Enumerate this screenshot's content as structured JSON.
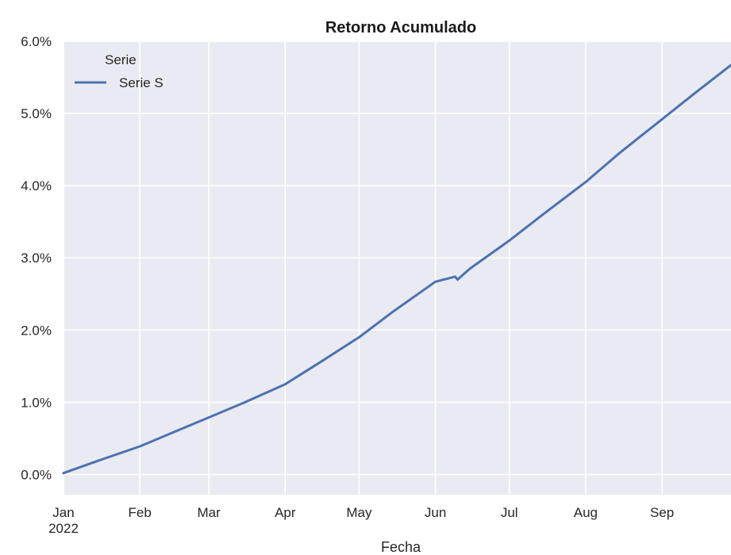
{
  "chart_data": {
    "type": "line",
    "title": "Retorno Acumulado",
    "xlabel": "Fecha",
    "ylabel": "",
    "ylim": [
      -0.28,
      6.0
    ],
    "y_ticks": [
      0.0,
      1.0,
      2.0,
      3.0,
      4.0,
      5.0,
      6.0
    ],
    "y_tick_labels": [
      "0.0%",
      "1.0%",
      "2.0%",
      "3.0%",
      "4.0%",
      "5.0%",
      "6.0%"
    ],
    "x_range": [
      "2022-01-01",
      "2022-09-29"
    ],
    "x_ticks": [
      "2022-01-01",
      "2022-02-01",
      "2022-03-01",
      "2022-04-01",
      "2022-05-01",
      "2022-06-01",
      "2022-07-01",
      "2022-08-01",
      "2022-09-01"
    ],
    "x_tick_labels": [
      "Jan",
      "Feb",
      "Mar",
      "Apr",
      "May",
      "Jun",
      "Jul",
      "Aug",
      "Sep"
    ],
    "x_tick_sublabel": "2022",
    "grid": true,
    "background": "#eaeaf2",
    "legend": {
      "title": "Serie",
      "placement": "top-left",
      "entries": [
        "Serie S"
      ]
    },
    "series": [
      {
        "name": "Serie S",
        "color": "#4c72b0",
        "points": [
          [
            "2022-01-01",
            0.02
          ],
          [
            "2022-01-15",
            0.19
          ],
          [
            "2022-02-01",
            0.39
          ],
          [
            "2022-02-15",
            0.59
          ],
          [
            "2022-03-01",
            0.79
          ],
          [
            "2022-03-15",
            0.99
          ],
          [
            "2022-04-01",
            1.25
          ],
          [
            "2022-04-15",
            1.55
          ],
          [
            "2022-05-01",
            1.9
          ],
          [
            "2022-05-15",
            2.26
          ],
          [
            "2022-06-01",
            2.67
          ],
          [
            "2022-06-09",
            2.74
          ],
          [
            "2022-06-10",
            2.7
          ],
          [
            "2022-06-15",
            2.85
          ],
          [
            "2022-07-01",
            3.24
          ],
          [
            "2022-07-15",
            3.61
          ],
          [
            "2022-08-01",
            4.05
          ],
          [
            "2022-08-15",
            4.46
          ],
          [
            "2022-09-01",
            4.92
          ],
          [
            "2022-09-15",
            5.3
          ],
          [
            "2022-09-29",
            5.67
          ]
        ]
      }
    ]
  }
}
